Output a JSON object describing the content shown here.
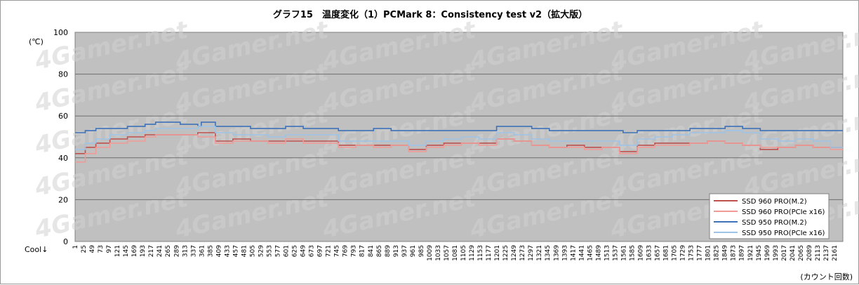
{
  "chart_data": {
    "type": "line",
    "title": "グラフ15　温度変化（1）PCMark 8：Consistency test v2（拡大版）",
    "ylabel": "(℃)",
    "xlabel": "(カウント回数)",
    "corner_label": "Cool↓",
    "watermark": "4Gamer.net",
    "ylim": [
      0,
      100
    ],
    "yticks": [
      "0",
      "20",
      "40",
      "60",
      "80",
      "100"
    ],
    "xlim": [
      1,
      2185
    ],
    "xtick_labels": [
      "1",
      "25",
      "49",
      "73",
      "97",
      "121",
      "145",
      "169",
      "193",
      "217",
      "241",
      "265",
      "289",
      "313",
      "337",
      "361",
      "385",
      "409",
      "433",
      "457",
      "481",
      "505",
      "529",
      "553",
      "577",
      "601",
      "625",
      "649",
      "673",
      "697",
      "721",
      "745",
      "769",
      "793",
      "817",
      "841",
      "865",
      "889",
      "913",
      "937",
      "961",
      "985",
      "1009",
      "1033",
      "1057",
      "1081",
      "1105",
      "1129",
      "1153",
      "1177",
      "1201",
      "1225",
      "1249",
      "1273",
      "1297",
      "1321",
      "1345",
      "1369",
      "1393",
      "1417",
      "1441",
      "1465",
      "1489",
      "1513",
      "1537",
      "1561",
      "1585",
      "1609",
      "1633",
      "1657",
      "1681",
      "1705",
      "1729",
      "1753",
      "1777",
      "1801",
      "1825",
      "1849",
      "1873",
      "1897",
      "1921",
      "1945",
      "1969",
      "1993",
      "2017",
      "2041",
      "2065",
      "2089",
      "2113",
      "2137",
      "2161"
    ],
    "grid": true,
    "legend_position": "bottom-right",
    "series": [
      {
        "name": "SSD 960 PRO(M.2)",
        "color": "#c0504d",
        "x": [
          1,
          30,
          60,
          100,
          150,
          200,
          230,
          300,
          350,
          400,
          450,
          500,
          550,
          600,
          650,
          700,
          750,
          800,
          850,
          900,
          950,
          1000,
          1050,
          1100,
          1150,
          1200,
          1250,
          1300,
          1350,
          1400,
          1450,
          1500,
          1550,
          1600,
          1650,
          1700,
          1750,
          1800,
          1850,
          1900,
          1950,
          2000,
          2050,
          2100,
          2150,
          2185
        ],
        "y": [
          42,
          45,
          47,
          49,
          50,
          51,
          51,
          51,
          52,
          48,
          49,
          48,
          48,
          48,
          48,
          48,
          46,
          46,
          46,
          46,
          44,
          46,
          47,
          47,
          47,
          49,
          48,
          46,
          45,
          46,
          45,
          45,
          43,
          46,
          47,
          47,
          47,
          48,
          47,
          46,
          44,
          45,
          46,
          45,
          45,
          45
        ]
      },
      {
        "name": "SSD 960 PRO(PCIe x16)",
        "color": "#f09a96",
        "x": [
          1,
          30,
          60,
          100,
          150,
          200,
          230,
          300,
          350,
          400,
          450,
          500,
          550,
          600,
          650,
          700,
          750,
          800,
          850,
          900,
          950,
          1000,
          1050,
          1100,
          1150,
          1200,
          1250,
          1300,
          1350,
          1400,
          1450,
          1500,
          1550,
          1600,
          1650,
          1700,
          1750,
          1800,
          1850,
          1900,
          1950,
          2000,
          2050,
          2100,
          2150,
          2185
        ],
        "y": [
          38,
          42,
          45,
          47,
          48,
          50,
          51,
          51,
          50,
          47,
          48,
          48,
          47,
          49,
          47,
          47,
          45,
          46,
          45,
          46,
          43,
          45,
          46,
          47,
          46,
          49,
          48,
          46,
          45,
          45,
          44,
          45,
          42,
          45,
          46,
          46,
          47,
          48,
          47,
          46,
          45,
          45,
          46,
          45,
          44,
          44
        ]
      },
      {
        "name": "SSD 950 PRO(M.2)",
        "color": "#3d72b8",
        "x": [
          1,
          30,
          60,
          100,
          150,
          200,
          230,
          300,
          350,
          360,
          400,
          450,
          500,
          550,
          600,
          650,
          700,
          750,
          800,
          850,
          900,
          950,
          1000,
          1050,
          1100,
          1150,
          1200,
          1250,
          1300,
          1350,
          1400,
          1450,
          1500,
          1550,
          1560,
          1600,
          1650,
          1700,
          1750,
          1800,
          1850,
          1900,
          1950,
          2000,
          2050,
          2100,
          2150,
          2185
        ],
        "y": [
          52,
          53,
          54,
          54,
          55,
          56,
          57,
          56,
          55,
          57,
          55,
          55,
          54,
          54,
          55,
          54,
          54,
          53,
          53,
          54,
          53,
          53,
          53,
          53,
          53,
          53,
          55,
          55,
          54,
          53,
          53,
          53,
          53,
          53,
          52,
          53,
          53,
          53,
          54,
          54,
          55,
          54,
          53,
          53,
          53,
          53,
          53,
          53
        ]
      },
      {
        "name": "SSD 950 PRO(PCIe x16)",
        "color": "#9dc3e6",
        "x": [
          1,
          30,
          60,
          100,
          150,
          200,
          230,
          300,
          350,
          360,
          400,
          450,
          500,
          550,
          600,
          650,
          700,
          750,
          800,
          850,
          900,
          950,
          1000,
          1050,
          1100,
          1150,
          1200,
          1250,
          1300,
          1350,
          1400,
          1450,
          1500,
          1550,
          1600,
          1650,
          1700,
          1750,
          1800,
          1850,
          1900,
          1950,
          2000,
          2050,
          2100,
          2150,
          2185
        ],
        "y": [
          44,
          47,
          49,
          51,
          52,
          53,
          54,
          54,
          55,
          55,
          52,
          51,
          51,
          50,
          51,
          51,
          51,
          48,
          48,
          48,
          48,
          46,
          48,
          49,
          50,
          49,
          52,
          51,
          49,
          48,
          48,
          48,
          48,
          46,
          49,
          50,
          51,
          52,
          52,
          53,
          52,
          49,
          48,
          49,
          48,
          45,
          45
        ]
      }
    ]
  }
}
